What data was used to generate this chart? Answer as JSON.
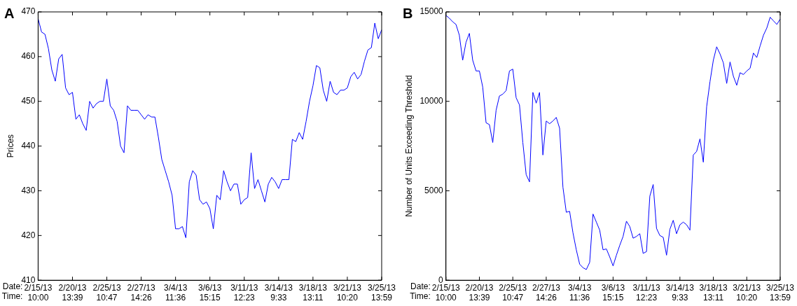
{
  "chart_data": [
    {
      "type": "line",
      "title": "A",
      "ylabel": "Prices",
      "annotations": [
        "Date:",
        "Time:"
      ],
      "ylim": [
        410,
        470
      ],
      "yticks": [
        410,
        420,
        430,
        440,
        450,
        460,
        470
      ],
      "categories": [
        "2/15/13 10:00",
        null,
        null,
        null,
        null,
        null,
        null,
        null,
        null,
        null,
        "2/20/13 13:39",
        null,
        null,
        null,
        null,
        null,
        null,
        null,
        null,
        null,
        "2/25/13 10:47",
        null,
        null,
        null,
        null,
        null,
        null,
        null,
        null,
        null,
        "2/27/13 14:26",
        null,
        null,
        null,
        null,
        null,
        null,
        null,
        null,
        null,
        "3/4/13 11:36",
        null,
        null,
        null,
        null,
        null,
        null,
        null,
        null,
        null,
        "3/6/13 15:15",
        null,
        null,
        null,
        null,
        null,
        null,
        null,
        null,
        null,
        "3/11/13 12:23",
        null,
        null,
        null,
        null,
        null,
        null,
        null,
        null,
        null,
        "3/14/13 9:33",
        null,
        null,
        null,
        null,
        null,
        null,
        null,
        null,
        null,
        "3/18/13 13:11",
        null,
        null,
        null,
        null,
        null,
        null,
        null,
        null,
        null,
        "3/21/13 10:20",
        null,
        null,
        null,
        null,
        null,
        null,
        null,
        null,
        null,
        "3/25/13 13:59"
      ],
      "grid": false,
      "legend": false,
      "series": [
        {
          "color": "#0000ff",
          "values": [
            468.5,
            465.5,
            465,
            461.8,
            457,
            454.5,
            459.5,
            460.5,
            453,
            451.5,
            452,
            446,
            447,
            445,
            443.5,
            450,
            448.5,
            449.5,
            450,
            450,
            455,
            449,
            448,
            445.5,
            440,
            438.5,
            449,
            448,
            448,
            448,
            447,
            446,
            447,
            446.5,
            446.5,
            442,
            437,
            434.5,
            432,
            429,
            421.5,
            421.5,
            422,
            419.5,
            432,
            434.5,
            433.5,
            428,
            427,
            427.5,
            426,
            421.5,
            429,
            428,
            434.5,
            432,
            430,
            431.5,
            431.5,
            427,
            428,
            428.5,
            438.5,
            430.5,
            432.5,
            430,
            427.5,
            431.5,
            433,
            432,
            430.5,
            432.5,
            432.5,
            432.5,
            441.5,
            441,
            443,
            441.5,
            445.5,
            450,
            453.5,
            458,
            457.5,
            452.5,
            450,
            454.5,
            452,
            451.5,
            452.5,
            452.5,
            453,
            455.5,
            456.5,
            455,
            456,
            459,
            461.5,
            462,
            467.5,
            464,
            466
          ]
        }
      ]
    },
    {
      "type": "line",
      "title": "B",
      "ylabel": "Number of Units Exceeding Threshold",
      "annotations": [
        "Date:",
        "Time:"
      ],
      "ylim": [
        0,
        15000
      ],
      "yticks": [
        0,
        5000,
        10000,
        15000
      ],
      "categories": [
        "2/15/13 10:00",
        null,
        null,
        null,
        null,
        null,
        null,
        null,
        null,
        null,
        "2/20/13 13:39",
        null,
        null,
        null,
        null,
        null,
        null,
        null,
        null,
        null,
        "2/25/13 10:47",
        null,
        null,
        null,
        null,
        null,
        null,
        null,
        null,
        null,
        "2/27/13 14:26",
        null,
        null,
        null,
        null,
        null,
        null,
        null,
        null,
        null,
        "3/4/13 11:36",
        null,
        null,
        null,
        null,
        null,
        null,
        null,
        null,
        null,
        "3/6/13 15:15",
        null,
        null,
        null,
        null,
        null,
        null,
        null,
        null,
        null,
        "3/11/13 12:23",
        null,
        null,
        null,
        null,
        null,
        null,
        null,
        null,
        null,
        "3/14/13 9:33",
        null,
        null,
        null,
        null,
        null,
        null,
        null,
        null,
        null,
        "3/18/13 13:11",
        null,
        null,
        null,
        null,
        null,
        null,
        null,
        null,
        null,
        "3/21/13 10:20",
        null,
        null,
        null,
        null,
        null,
        null,
        null,
        null,
        null,
        "3/25/13 13:59"
      ],
      "grid": false,
      "legend": false,
      "series": [
        {
          "color": "#0000ff",
          "values": [
            14800,
            14650,
            14450,
            14300,
            13700,
            12300,
            13300,
            13800,
            12300,
            11700,
            11700,
            10800,
            8800,
            8700,
            7700,
            9500,
            10300,
            10400,
            10600,
            11700,
            11800,
            10200,
            9800,
            7700,
            5900,
            5500,
            10500,
            9900,
            10500,
            7000,
            8900,
            8750,
            8900,
            9100,
            8500,
            5200,
            3800,
            3850,
            2650,
            1700,
            900,
            700,
            600,
            1000,
            3700,
            3250,
            2800,
            1700,
            1750,
            1300,
            800,
            1400,
            1950,
            2450,
            3300,
            3000,
            2350,
            2450,
            2600,
            1500,
            1600,
            4700,
            5350,
            2900,
            2500,
            2400,
            1400,
            2850,
            3350,
            2600,
            3100,
            3250,
            3100,
            2800,
            7000,
            7200,
            7900,
            6600,
            9700,
            11100,
            12300,
            13050,
            12650,
            12150,
            11000,
            12200,
            11400,
            10900,
            11600,
            11500,
            11700,
            11850,
            12700,
            12450,
            13100,
            13700,
            14100,
            14700,
            14500,
            14300,
            14600
          ]
        }
      ]
    }
  ]
}
